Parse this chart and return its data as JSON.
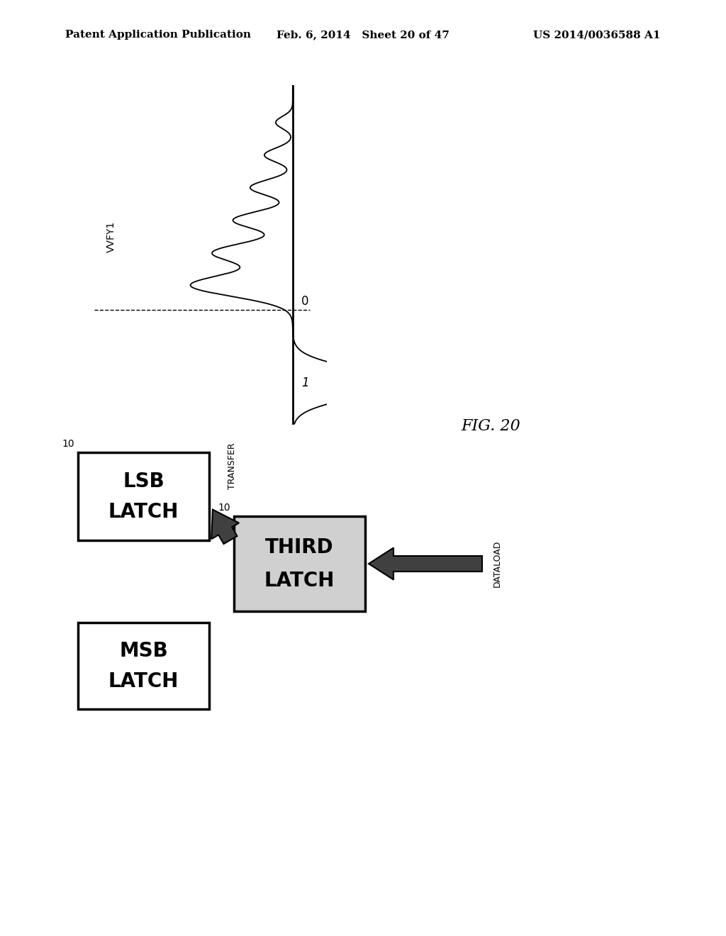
{
  "bg_color": "#ffffff",
  "header_left": "Patent Application Publication",
  "header_center": "Feb. 6, 2014   Sheet 20 of 47",
  "header_right": "US 2014/0036588 A1",
  "header_fontsize": 11,
  "fig_label": "FIG. 20",
  "vvfy1_label": "VVFY1",
  "axis_label_0": "0",
  "axis_label_1": "1",
  "transfer_label": "TRANSFER",
  "dataload_label": "DATALOAD",
  "label_10_lsb": "10",
  "label_10_third": "10"
}
